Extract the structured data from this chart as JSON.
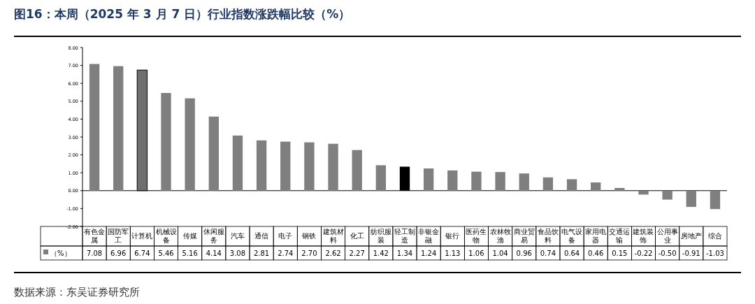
{
  "chart_data": {
    "type": "bar",
    "title": "图16：本周（2025 年 3 月 7 日）行业指数涨跌幅比较（%）",
    "categories": [
      "有色金属",
      "国防军工",
      "计算机",
      "机械设备",
      "传媒",
      "休闲服务",
      "汽车",
      "通信",
      "电子",
      "钢铁",
      "建筑材料",
      "化工",
      "纺织服装",
      "轻工制造",
      "非银金融",
      "银行",
      "医药生物",
      "农林牧渔",
      "商业贸易",
      "食品饮料",
      "电气设备",
      "家用电器",
      "交通运输",
      "建筑装饰",
      "公用事业",
      "房地产",
      "综合"
    ],
    "series": [
      {
        "name": "（%）",
        "color": "#7f7f7f",
        "colors": [
          "#7f7f7f",
          "#7f7f7f",
          "#6f6f6f",
          "#7f7f7f",
          "#7f7f7f",
          "#7f7f7f",
          "#7f7f7f",
          "#7f7f7f",
          "#7f7f7f",
          "#7f7f7f",
          "#7f7f7f",
          "#7f7f7f",
          "#7f7f7f",
          "#000000",
          "#7f7f7f",
          "#7f7f7f",
          "#7f7f7f",
          "#7f7f7f",
          "#7f7f7f",
          "#7f7f7f",
          "#7f7f7f",
          "#7f7f7f",
          "#7f7f7f",
          "#7f7f7f",
          "#7f7f7f",
          "#7f7f7f",
          "#7f7f7f"
        ],
        "values": [
          7.08,
          6.96,
          6.74,
          5.46,
          5.16,
          4.14,
          3.08,
          2.81,
          2.74,
          2.7,
          2.62,
          2.27,
          1.42,
          1.34,
          1.24,
          1.13,
          1.06,
          1.04,
          0.96,
          0.74,
          0.64,
          0.46,
          0.15,
          -0.22,
          -0.5,
          -0.91,
          -1.03
        ]
      }
    ],
    "ylim": [
      -2,
      8
    ],
    "yticks": [
      {
        "value": 8,
        "label": "8.00"
      },
      {
        "value": 7,
        "label": "7.00"
      },
      {
        "value": 6,
        "label": "6.00"
      },
      {
        "value": 5,
        "label": "5.00"
      },
      {
        "value": 4,
        "label": "4.00"
      },
      {
        "value": 3,
        "label": "3.00"
      },
      {
        "value": 2,
        "label": "2.00"
      },
      {
        "value": 1,
        "label": "1.00"
      },
      {
        "value": 0,
        "label": "0.00"
      },
      {
        "value": -1,
        "label": "-1.00"
      },
      {
        "value": -2,
        "label": "-2.00"
      }
    ],
    "value_labels": [
      "7.08",
      "6.96",
      "6.74",
      "5.46",
      "5.16",
      "4.14",
      "3.08",
      "2.81",
      "2.74",
      "2.70",
      "2.62",
      "2.27",
      "1.42",
      "1.34",
      "1.24",
      "1.13",
      "1.06",
      "1.04",
      "0.96",
      "0.74",
      "0.64",
      "0.46",
      "0.15",
      "-0.22",
      "-0.50",
      "-0.91",
      "-1.03"
    ],
    "legend": "bottom",
    "annotations": [
      "数据来源：东吴证券研究所"
    ]
  }
}
